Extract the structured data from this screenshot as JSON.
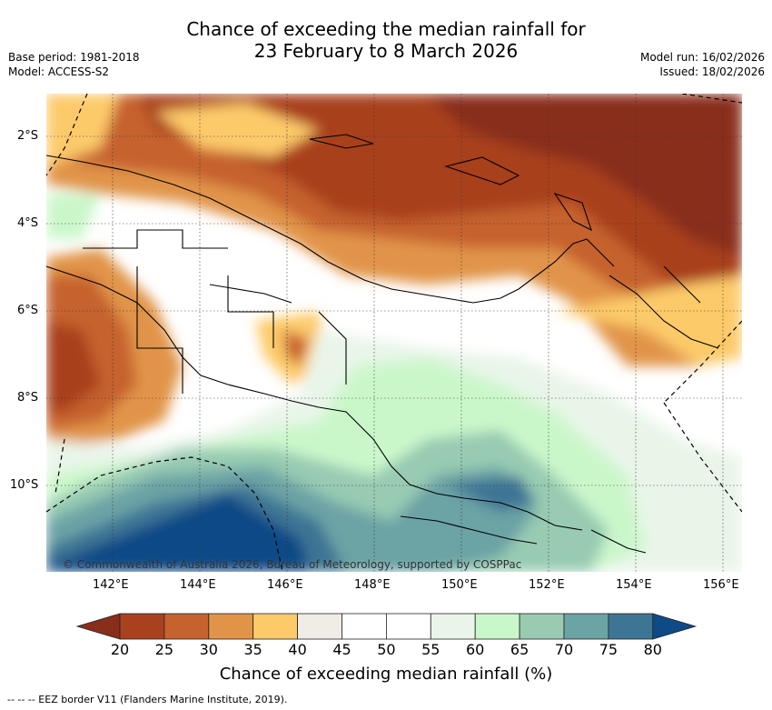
{
  "title": {
    "line1": "Chance of exceeding the median rainfall for",
    "line2": "23 February to 8 March 2026"
  },
  "meta_left": {
    "base_period": "Base period: 1981-2018",
    "model": "Model: ACCESS-S2"
  },
  "meta_right": {
    "model_run": "Model run: 16/02/2026",
    "issued": "Issued: 18/02/2026"
  },
  "map": {
    "lat_labels": [
      "2°S",
      "4°S",
      "6°S",
      "8°S",
      "10°S"
    ],
    "lon_labels": [
      "142°E",
      "144°E",
      "146°E",
      "148°E",
      "150°E",
      "152°E",
      "154°E",
      "156°E"
    ],
    "copyright": "© Commonwealth of Australia 2026, Bureau of Meteorology, supported by COSPPac"
  },
  "colorbar": {
    "ticks": [
      "20",
      "25",
      "30",
      "35",
      "40",
      "45",
      "50",
      "55",
      "60",
      "65",
      "70",
      "75",
      "80"
    ],
    "colors": [
      "#a9411f",
      "#c6622e",
      "#e19448",
      "#fdca6a",
      "#f0ede6",
      "#ffffff",
      "#ffffff",
      "#e9f5e9",
      "#caf7ca",
      "#98cbb2",
      "#6ca3a5",
      "#3e7594"
    ],
    "under_color": "#8a2e1c",
    "over_color": "#0e4a86",
    "label": "Chance of exceeding median rainfall (%)"
  },
  "footnote": "--  --  -- EEZ border V11 (Flanders Marine Institute, 2019)."
}
